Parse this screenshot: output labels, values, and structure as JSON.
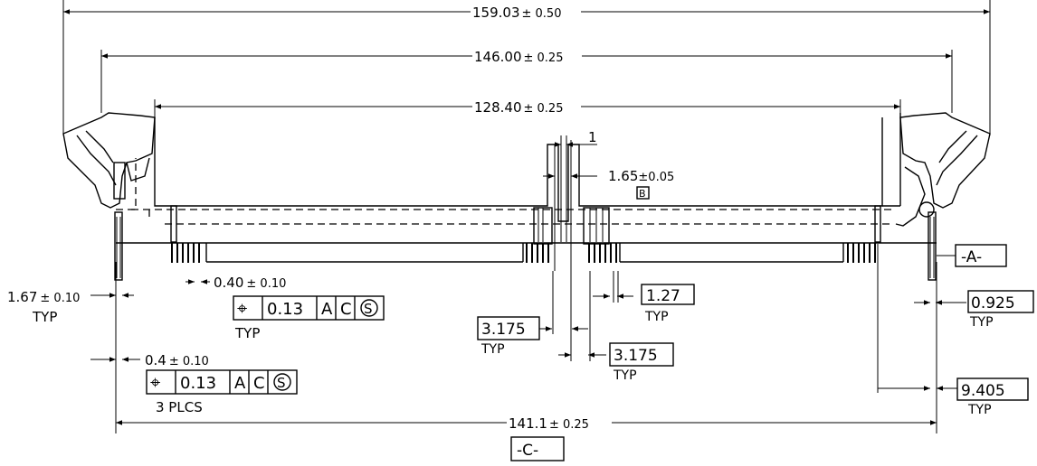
{
  "dimensions": {
    "overall_width": {
      "value": "159.03",
      "tol": "± 0.50"
    },
    "outer_latch_span": {
      "value": "146.00",
      "tol": "± 0.25"
    },
    "inner_span": {
      "value": "128.40",
      "tol": "± 0.25"
    },
    "datum_c_span": {
      "value": "141.1",
      "tol": "± 0.25"
    },
    "key_one": "1",
    "key_gap": {
      "value": "1.65",
      "tol": "±0.05"
    },
    "pin_width_left": {
      "value": "0.40",
      "tol": "± 0.10"
    },
    "post_dia": {
      "value": "1.67",
      "tol": "± 0.10",
      "note": "TYP"
    },
    "post_small": {
      "value": "0.4",
      "tol": "± 0.10"
    },
    "pitch": {
      "value": "1.27",
      "note": "TYP"
    },
    "key_offset_left": {
      "value": "3.175",
      "note": "TYP"
    },
    "key_offset_right": {
      "value": "3.175",
      "note": "TYP"
    },
    "edge_right": {
      "value": "0.925",
      "note": "TYP"
    },
    "last_pin_right": {
      "value": "9.405",
      "note": "TYP"
    }
  },
  "datums": {
    "a": "-A-",
    "b": "B",
    "c": "-C-"
  },
  "fcf_pins": {
    "symbol": "⌖",
    "tolerance": "0.13",
    "datum1": "A",
    "datum2": "C",
    "modifier": "S",
    "note": "TYP"
  },
  "fcf_posts": {
    "symbol": "⌖",
    "tolerance": "0.13",
    "datum1": "A",
    "datum2": "C",
    "modifier": "S",
    "note": "3 PLCS"
  }
}
